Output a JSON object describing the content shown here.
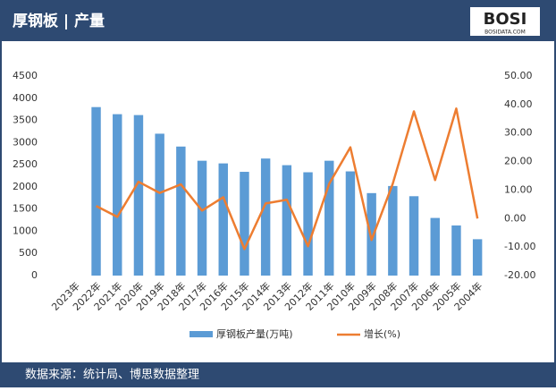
{
  "header": {
    "title": "厚钢板 | 产量",
    "logo": "BOSI",
    "logo_sub": "BOSIDATA.COM"
  },
  "footer": {
    "source": "数据来源：统计局、博思数据整理"
  },
  "chart_data": {
    "type": "bar-line",
    "categories": [
      "2023年",
      "2022年",
      "2021年",
      "2020年",
      "2019年",
      "2018年",
      "2017年",
      "2016年",
      "2015年",
      "2014年",
      "2013年",
      "2012年",
      "2011年",
      "2010年",
      "2009年",
      "2008年",
      "2007年",
      "2006年",
      "2005年",
      "2004年"
    ],
    "series": [
      {
        "name": "厚钢板产量(万吨)",
        "type": "bar",
        "color": "#5b9bd5",
        "values": [
          null,
          3800,
          3640,
          3620,
          3200,
          2910,
          2590,
          2530,
          2340,
          2640,
          2490,
          2330,
          2590,
          2350,
          1860,
          2020,
          1790,
          1300,
          1130,
          820
        ]
      },
      {
        "name": "增长(%)",
        "type": "line",
        "axis": "y2",
        "color": "#ed7d31",
        "values": [
          null,
          4.4,
          0.6,
          12.9,
          9.0,
          12.0,
          2.8,
          7.5,
          -10.7,
          5.3,
          6.6,
          -9.7,
          12.2,
          25.0,
          -7.5,
          12.2,
          37.6,
          13.5,
          38.6,
          0.0
        ]
      }
    ],
    "ylim": [
      0,
      4500
    ],
    "yticks": [
      0,
      500,
      1000,
      1500,
      2000,
      2500,
      3000,
      3500,
      4000,
      4500
    ],
    "y2lim": [
      -20,
      50
    ],
    "y2ticks": [
      {
        "value": -20,
        "label": "-20.00"
      },
      {
        "value": -10,
        "label": "-10.00"
      },
      {
        "value": 0,
        "label": "0.00"
      },
      {
        "value": 10,
        "label": "10.00"
      },
      {
        "value": 20,
        "label": "20.00"
      },
      {
        "value": 30,
        "label": "30.00"
      },
      {
        "value": 40,
        "label": "40.00"
      },
      {
        "value": 50,
        "label": "50.00"
      }
    ]
  }
}
